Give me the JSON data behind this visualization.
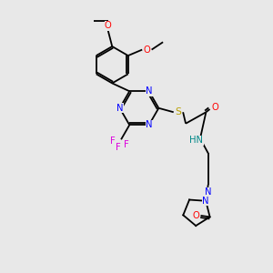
{
  "bg_color": "#e8e8e8",
  "bond_color": "#000000",
  "atom_colors": {
    "N": "#0000ff",
    "O": "#ff0000",
    "S": "#b8a000",
    "F": "#dd00dd",
    "H": "#008888",
    "C": "#000000"
  },
  "lw": 1.3,
  "fs": 7.2
}
